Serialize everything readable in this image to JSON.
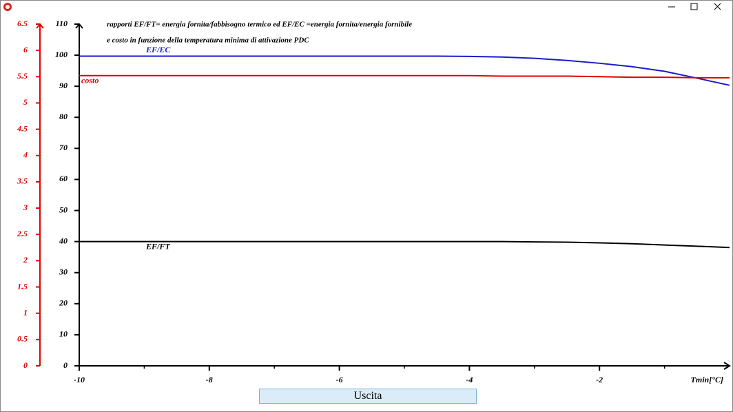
{
  "window": {
    "button": "Uscita"
  },
  "chart_data": {
    "type": "line",
    "title": [
      "rapporti EF/FT= energia fornita/fabbisogno termico ed EF/EC =energia fornita/energia fornibile",
      "e costo in funzione della temperatura minima di attivazione PDC"
    ],
    "x_label": "Tmin[°C]",
    "x": [
      -10,
      -9.5,
      -9,
      -8.5,
      -8,
      -7.5,
      -7,
      -6.5,
      -6,
      -5.5,
      -5,
      -4.5,
      -4,
      -3.5,
      -3,
      -2.5,
      -2,
      -1.5,
      -1,
      -0.5,
      0
    ],
    "xlim": [
      -10,
      0
    ],
    "xticks": [
      -10,
      -8,
      -6,
      -4,
      -2
    ],
    "x_minor_ticks": [
      -9,
      -7,
      -5,
      -3,
      -1
    ],
    "ylim": [
      0,
      110
    ],
    "yticks": [
      0,
      10,
      20,
      30,
      40,
      50,
      60,
      70,
      80,
      90,
      100,
      110
    ],
    "y2lim": [
      0,
      6.5
    ],
    "y2ticks": [
      0,
      0.5,
      1,
      1.5,
      2,
      2.5,
      3,
      3.5,
      4,
      4.5,
      5,
      5.5,
      6,
      6.5
    ],
    "y2color": "#e00000",
    "series": [
      {
        "name": "EF/EC",
        "color": "#1a1acc",
        "values": [
          99.7,
          99.7,
          99.7,
          99.7,
          99.7,
          99.7,
          99.7,
          99.7,
          99.7,
          99.7,
          99.7,
          99.7,
          99.6,
          99.4,
          99.0,
          98.3,
          97.4,
          96.3,
          94.8,
          92.6,
          90.3
        ]
      },
      {
        "name": "costo",
        "color": "#e00000",
        "axis": "y2",
        "values": [
          5.52,
          5.52,
          5.52,
          5.52,
          5.52,
          5.52,
          5.52,
          5.52,
          5.52,
          5.52,
          5.52,
          5.52,
          5.52,
          5.51,
          5.51,
          5.51,
          5.5,
          5.49,
          5.49,
          5.48,
          5.48
        ]
      },
      {
        "name": "EF/FT",
        "color": "#000000",
        "values": [
          40.0,
          40.0,
          40.0,
          40.0,
          40.0,
          40.0,
          40.0,
          40.0,
          40.0,
          40.0,
          40.0,
          40.0,
          40.0,
          40.0,
          39.9,
          39.8,
          39.6,
          39.3,
          38.9,
          38.5,
          38.1
        ]
      }
    ]
  }
}
